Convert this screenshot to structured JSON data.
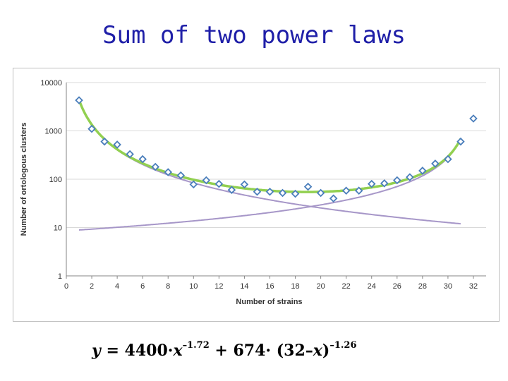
{
  "slide": {
    "title": "Sum of two power laws"
  },
  "formula": {
    "y": "y",
    "eq": " = 4400·",
    "x1": "x",
    "exp1": "–1.72",
    "plus": " + 674· (32–",
    "x2": "x",
    "close": ")",
    "exp2": "–1.26"
  },
  "chart_data": {
    "type": "scatter",
    "xlabel": "Number of strains",
    "ylabel": "Number of ortologous clusters",
    "xlim": [
      0,
      33
    ],
    "ylim": [
      1,
      10000
    ],
    "yscale": "log",
    "x_ticks": [
      "0",
      "2",
      "4",
      "6",
      "8",
      "10",
      "12",
      "14",
      "16",
      "18",
      "20",
      "22",
      "24",
      "26",
      "28",
      "30",
      "32"
    ],
    "y_ticks": [
      "1",
      "10",
      "100",
      "1000",
      "10000"
    ],
    "grid": "horizontal",
    "colors": {
      "points": "#4a7ebb",
      "fit": "#92d050",
      "components": "#a696c8"
    },
    "series": [
      {
        "kind": "points",
        "x": [
          1,
          2,
          3,
          4,
          5,
          6,
          7,
          8,
          9,
          10,
          11,
          12,
          13,
          14,
          15,
          16,
          17,
          18,
          19,
          20,
          21,
          22,
          23,
          24,
          25,
          26,
          27,
          28,
          29,
          30,
          31,
          32
        ],
        "y": [
          4300,
          1100,
          600,
          520,
          330,
          260,
          180,
          140,
          120,
          78,
          95,
          80,
          60,
          78,
          55,
          55,
          52,
          50,
          70,
          52,
          40,
          58,
          58,
          80,
          82,
          95,
          110,
          150,
          210,
          260,
          600,
          1800
        ]
      },
      {
        "kind": "fit",
        "formula": "4400*x^-1.72 + 674*(32-x)^-1.26",
        "x_range": [
          1,
          31
        ]
      },
      {
        "kind": "component-left",
        "formula": "4400*x^-1.72",
        "x_range": [
          1,
          31
        ]
      },
      {
        "kind": "component-right",
        "formula": "674*(32-x)^-1.26",
        "x_range": [
          1,
          31
        ]
      }
    ]
  }
}
